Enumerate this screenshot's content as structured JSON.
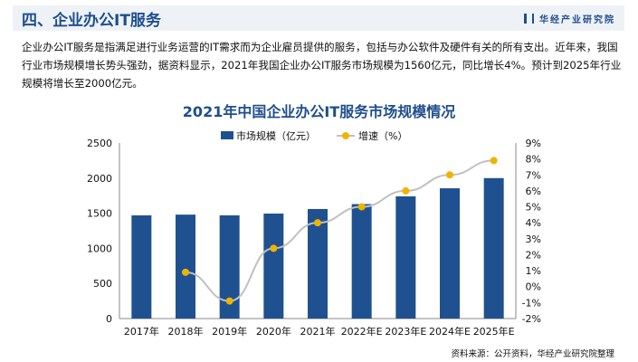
{
  "header": {
    "title": "四、企业办公IT服务",
    "brand": "华经产业研究院"
  },
  "intro": "企业办公IT服务是指满足进行业务运营的IT需求而为企业雇员提供的服务，包括与办公软件及硬件有关的所有支出。近年来，我国行业市场规模增长势头强劲，据资料显示，2021年我国企业办公IT服务市场规模为1560亿元，同比增长4%。预计到2025年行业规模将增长至2000亿元。",
  "source": "资料来源：公开资料，华经产业研究院整理",
  "chart_data": {
    "type": "bar+line",
    "title": "2021年中国企业办公IT服务市场规模情况",
    "categories": [
      "2017年",
      "2018年",
      "2019年",
      "2020年",
      "2021年",
      "2022年E",
      "2023年E",
      "2024年E",
      "2025年E"
    ],
    "series": [
      {
        "name": "市场规模（亿元）",
        "type": "bar",
        "axis": "left",
        "color": "#1f5191",
        "values": [
          1470,
          1480,
          1470,
          1495,
          1560,
          1630,
          1740,
          1855,
          2000
        ]
      },
      {
        "name": "增速（%）",
        "type": "line",
        "axis": "right",
        "color": "#f0b400",
        "line_color": "#c0c0c0",
        "values": [
          null,
          0.9,
          -0.9,
          2.4,
          4.0,
          5.0,
          6.0,
          7.0,
          7.9
        ]
      }
    ],
    "y_left": {
      "lim": [
        0,
        2500
      ],
      "ticks": [
        "0",
        "500",
        "1000",
        "1500",
        "2000",
        "2500"
      ]
    },
    "y_right": {
      "lim": [
        -2,
        9
      ],
      "ticks": [
        "-2%",
        "-1%",
        "0%",
        "1%",
        "2%",
        "3%",
        "4%",
        "5%",
        "6%",
        "7%",
        "8%",
        "9%"
      ]
    },
    "legend": "top",
    "grid": false
  }
}
